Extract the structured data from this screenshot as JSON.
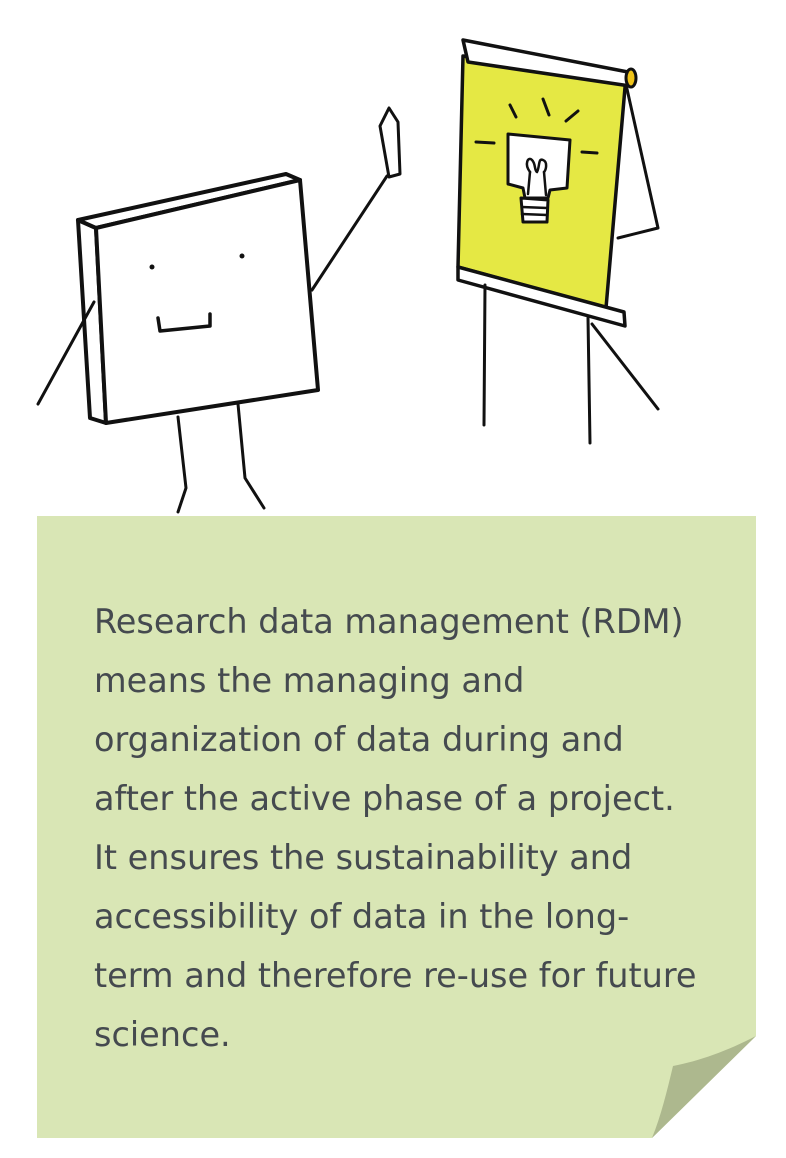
{
  "illustration": {
    "description_icons": [
      "smiling-square-character-icon",
      "flipchart-lightbulb-icon"
    ],
    "colors": {
      "outline": "#111111",
      "flipchart_paper": "#e5e844",
      "flipchart_roll": "#f0c419",
      "bulb_fill": "#ffffff"
    }
  },
  "note": {
    "text": "Research data management (RDM) means the managing and organization of data during and after the active phase of a project. It ensures the sustainability and accessibility of data in the long-term and therefore re-use for future science.",
    "colors": {
      "background": "#d9e6b5",
      "curl": "#adb88e",
      "text": "#454a4f"
    }
  }
}
